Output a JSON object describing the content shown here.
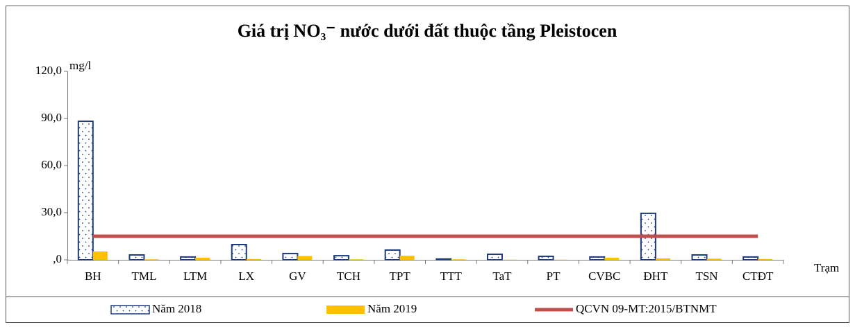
{
  "chart_data": {
    "type": "bar",
    "title": "Giá trị NO₃⁻ nước dưới đất thuộc tầng Pleistocen",
    "y_axis_label": "mg/l",
    "x_axis_label": "Trạm",
    "categories": [
      "BH",
      "TML",
      "LTM",
      "LX",
      "GV",
      "TCH",
      "TPT",
      "TTT",
      "TaT",
      "PT",
      "CVBC",
      "ĐHT",
      "TSN",
      "CTĐT"
    ],
    "series": [
      {
        "name": "Năm 2018",
        "type": "bar",
        "color": "#1f3a7a",
        "pattern": "dots",
        "values": [
          88.2,
          3.1,
          1.8,
          9.7,
          4.0,
          2.6,
          6.2,
          0.5,
          3.5,
          2.2,
          1.8,
          29.6,
          3.1,
          1.8
        ]
      },
      {
        "name": "Năm 2019",
        "type": "bar",
        "color": "#ffc000",
        "values": [
          5.3,
          0.3,
          1.3,
          0.5,
          2.4,
          0.3,
          2.6,
          0.3,
          0.1,
          0.1,
          1.3,
          0.9,
          0.7,
          0.5
        ]
      },
      {
        "name": "QCVN 09-MT:2015/BTNMT",
        "type": "line",
        "color": "#c0504d",
        "values": [
          15,
          15,
          15,
          15,
          15,
          15,
          15,
          15,
          15,
          15,
          15,
          15,
          15,
          15
        ]
      }
    ],
    "ylim": [
      0,
      120
    ],
    "yticks": [
      {
        "value": 0,
        "label": ",0"
      },
      {
        "value": 30,
        "label": "30,0"
      },
      {
        "value": 60,
        "label": "60,0"
      },
      {
        "value": 90,
        "label": "90,0"
      },
      {
        "value": 120,
        "label": "120,0"
      }
    ],
    "grid": false,
    "legend": "bottom"
  }
}
